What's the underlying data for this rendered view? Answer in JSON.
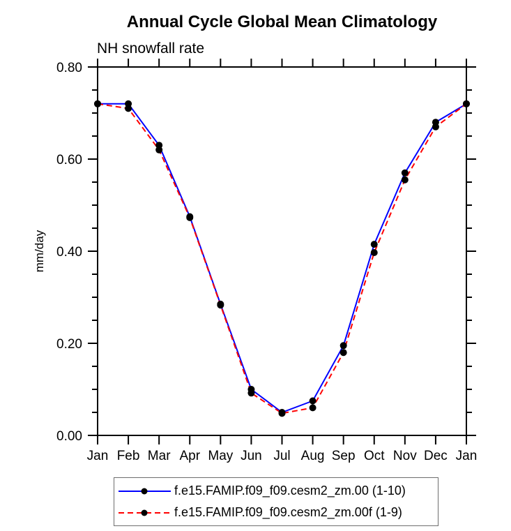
{
  "chart_data": {
    "type": "line",
    "title": "Annual Cycle Global Mean Climatology",
    "subtitle": "NH snowfall rate",
    "ylabel": "mm/day",
    "xlabel": "",
    "categories": [
      "Jan",
      "Feb",
      "Mar",
      "Apr",
      "May",
      "Jun",
      "Jul",
      "Aug",
      "Sep",
      "Oct",
      "Nov",
      "Dec",
      "Jan"
    ],
    "ylim": [
      0.0,
      0.8
    ],
    "ytick_major": [
      0.0,
      0.2,
      0.4,
      0.6,
      0.8
    ],
    "ytick_minor_step": 0.05,
    "ytick_label_format": "2dp",
    "grid": false,
    "legend_position": "bottom",
    "marker_color": "#000000",
    "frame_color": "#000000",
    "series": [
      {
        "name": "f.e15.FAMIP.f09_f09.cesm2_zm.00 (1-10)",
        "color": "#0000ff",
        "style": "solid",
        "marker": "filled-circle",
        "values": [
          0.72,
          0.72,
          0.63,
          0.475,
          0.285,
          0.1,
          0.05,
          0.075,
          0.195,
          0.415,
          0.57,
          0.68,
          0.72
        ]
      },
      {
        "name": "f.e15.FAMIP.f09_f09.cesm2_zm.00f (1-9)",
        "color": "#ff0000",
        "style": "dashed",
        "marker": "filled-circle",
        "values": [
          0.72,
          0.71,
          0.62,
          0.473,
          0.283,
          0.092,
          0.048,
          0.06,
          0.18,
          0.397,
          0.555,
          0.67,
          0.72
        ]
      }
    ]
  }
}
